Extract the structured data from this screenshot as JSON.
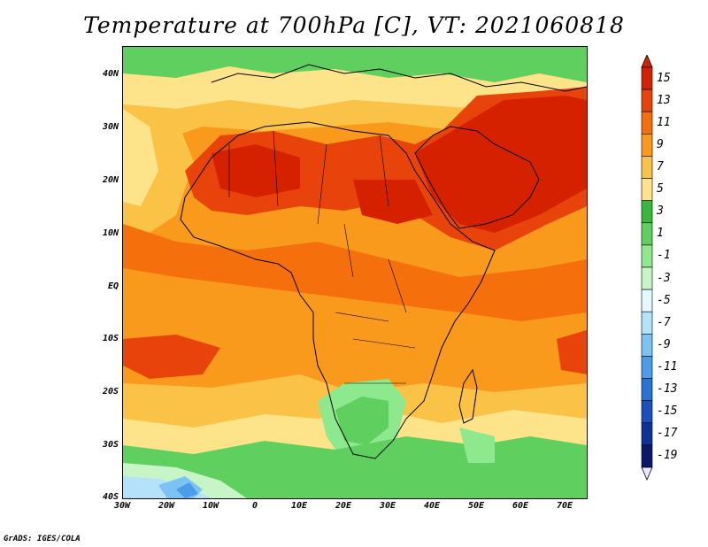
{
  "title": "Temperature at 700hPa [C], VT: 2021060818",
  "credit": "GrADS: IGES/COLA",
  "axes": {
    "lat_labels": [
      "40N",
      "30N",
      "20N",
      "10N",
      "EQ",
      "10S",
      "20S",
      "30S",
      "40S"
    ],
    "lon_labels": [
      "30W",
      "20W",
      "10W",
      "0",
      "10E",
      "20E",
      "30E",
      "40E",
      "50E",
      "60E",
      "70E"
    ]
  },
  "colorbar": {
    "labels": [
      "15",
      "13",
      "11",
      "9",
      "7",
      "5",
      "3",
      "1",
      "-1",
      "-3",
      "-5",
      "-7",
      "-9",
      "-11",
      "-13",
      "-15",
      "-17",
      "-19"
    ],
    "colors": [
      "#d62100",
      "#e8430a",
      "#f5700c",
      "#f99a1c",
      "#fbc248",
      "#fde48b",
      "#38b838",
      "#5fd05f",
      "#8ee88e",
      "#c8f5c8",
      "#e4f8ff",
      "#b4e2fb",
      "#7cc3f5",
      "#4b9ceb",
      "#2a73d6",
      "#1a4fbf",
      "#10319b",
      "#0a176b"
    ],
    "extend_low_color": "#e8e8ff"
  },
  "map": {
    "region": "Africa and surrounding oceans",
    "lon_range": [
      -30,
      75
    ],
    "lat_range": [
      -40,
      45
    ],
    "projection": "latlon"
  }
}
